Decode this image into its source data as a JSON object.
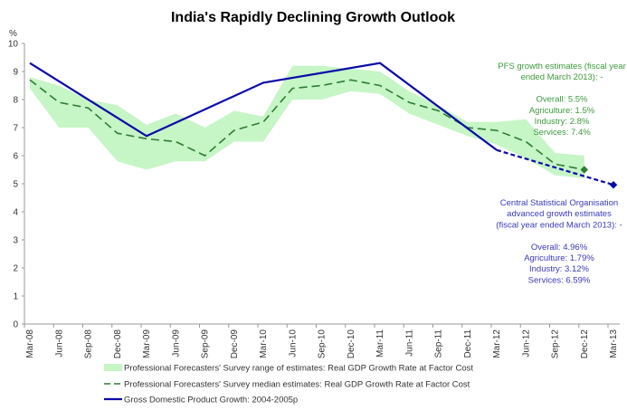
{
  "chart_data": {
    "type": "line",
    "title": "India's Rapidly Declining Growth Outlook",
    "ylabel": "%",
    "ylim": [
      0,
      10
    ],
    "yticks": [
      "0",
      "1",
      "2",
      "3",
      "4",
      "5",
      "6",
      "7",
      "8",
      "9",
      "10"
    ],
    "categories": [
      "Mar-08",
      "Jun-08",
      "Sep-08",
      "Dec-08",
      "Mar-09",
      "Jun-09",
      "Sep-09",
      "Dec-09",
      "Mar-10",
      "Jun-10",
      "Sep-10",
      "Dec-10",
      "Mar-11",
      "Jun-11",
      "Sep-11",
      "Dec-11",
      "Mar-12",
      "Jun-12",
      "Sep-12",
      "Dec-12",
      "Mar-13"
    ],
    "grid": false,
    "legend_position": "bottom",
    "series": [
      {
        "name": "Professional Forecasters' Survey range of estimates: Real GDP Growth Rate at Factor Cost",
        "type": "range-area",
        "color": "#c6f5c6",
        "low": [
          8.4,
          7.0,
          7.0,
          5.8,
          5.5,
          5.8,
          5.8,
          6.5,
          6.5,
          8.0,
          8.0,
          8.3,
          8.2,
          7.5,
          7.1,
          6.7,
          6.4,
          5.9,
          5.3,
          5.2,
          null
        ],
        "high": [
          8.8,
          8.5,
          8.0,
          7.8,
          7.1,
          7.5,
          7.0,
          7.6,
          7.4,
          9.2,
          9.2,
          9.1,
          9.0,
          8.3,
          7.8,
          7.2,
          7.2,
          7.3,
          6.1,
          6.0,
          null
        ]
      },
      {
        "name": "Professional Forecasters' Survey median estimates: Real GDP Growth Rate at Factor Cost",
        "type": "dashed-line",
        "color": "#2e7d32",
        "values": [
          8.7,
          7.9,
          7.7,
          6.8,
          6.6,
          6.5,
          6.0,
          6.9,
          7.2,
          8.4,
          8.5,
          8.7,
          8.5,
          7.9,
          7.6,
          7.0,
          6.9,
          6.5,
          5.7,
          5.5,
          null
        ]
      },
      {
        "name": "Gross Domestic Product Growth: 2004-2005p",
        "type": "line",
        "color": "#0a0aa8",
        "values": [
          9.3,
          null,
          null,
          null,
          6.7,
          null,
          null,
          null,
          8.6,
          null,
          null,
          null,
          9.3,
          null,
          null,
          null,
          6.2,
          null,
          null,
          null,
          4.96
        ],
        "projected_from": "Mar-12"
      }
    ],
    "annotations": {
      "pfs": {
        "color": "#3c9a3c",
        "lines": [
          "PFS growth estimates (fiscal year",
          "ended March 2013): -",
          "",
          "Overall: 5.5%",
          "Agriculture: 1.5%",
          "Industry: 2.8%",
          "Services: 7.4%"
        ]
      },
      "cso": {
        "color": "#3a3ab8",
        "lines": [
          "Central Statistical Organisation",
          "advanced growth estimates",
          "(fiscal year ended March 2013): -",
          "",
          "Overall: 4.96%",
          "Agriculture: 1.79%",
          "Industry: 3.12%",
          "Services: 6.59%"
        ]
      }
    }
  }
}
